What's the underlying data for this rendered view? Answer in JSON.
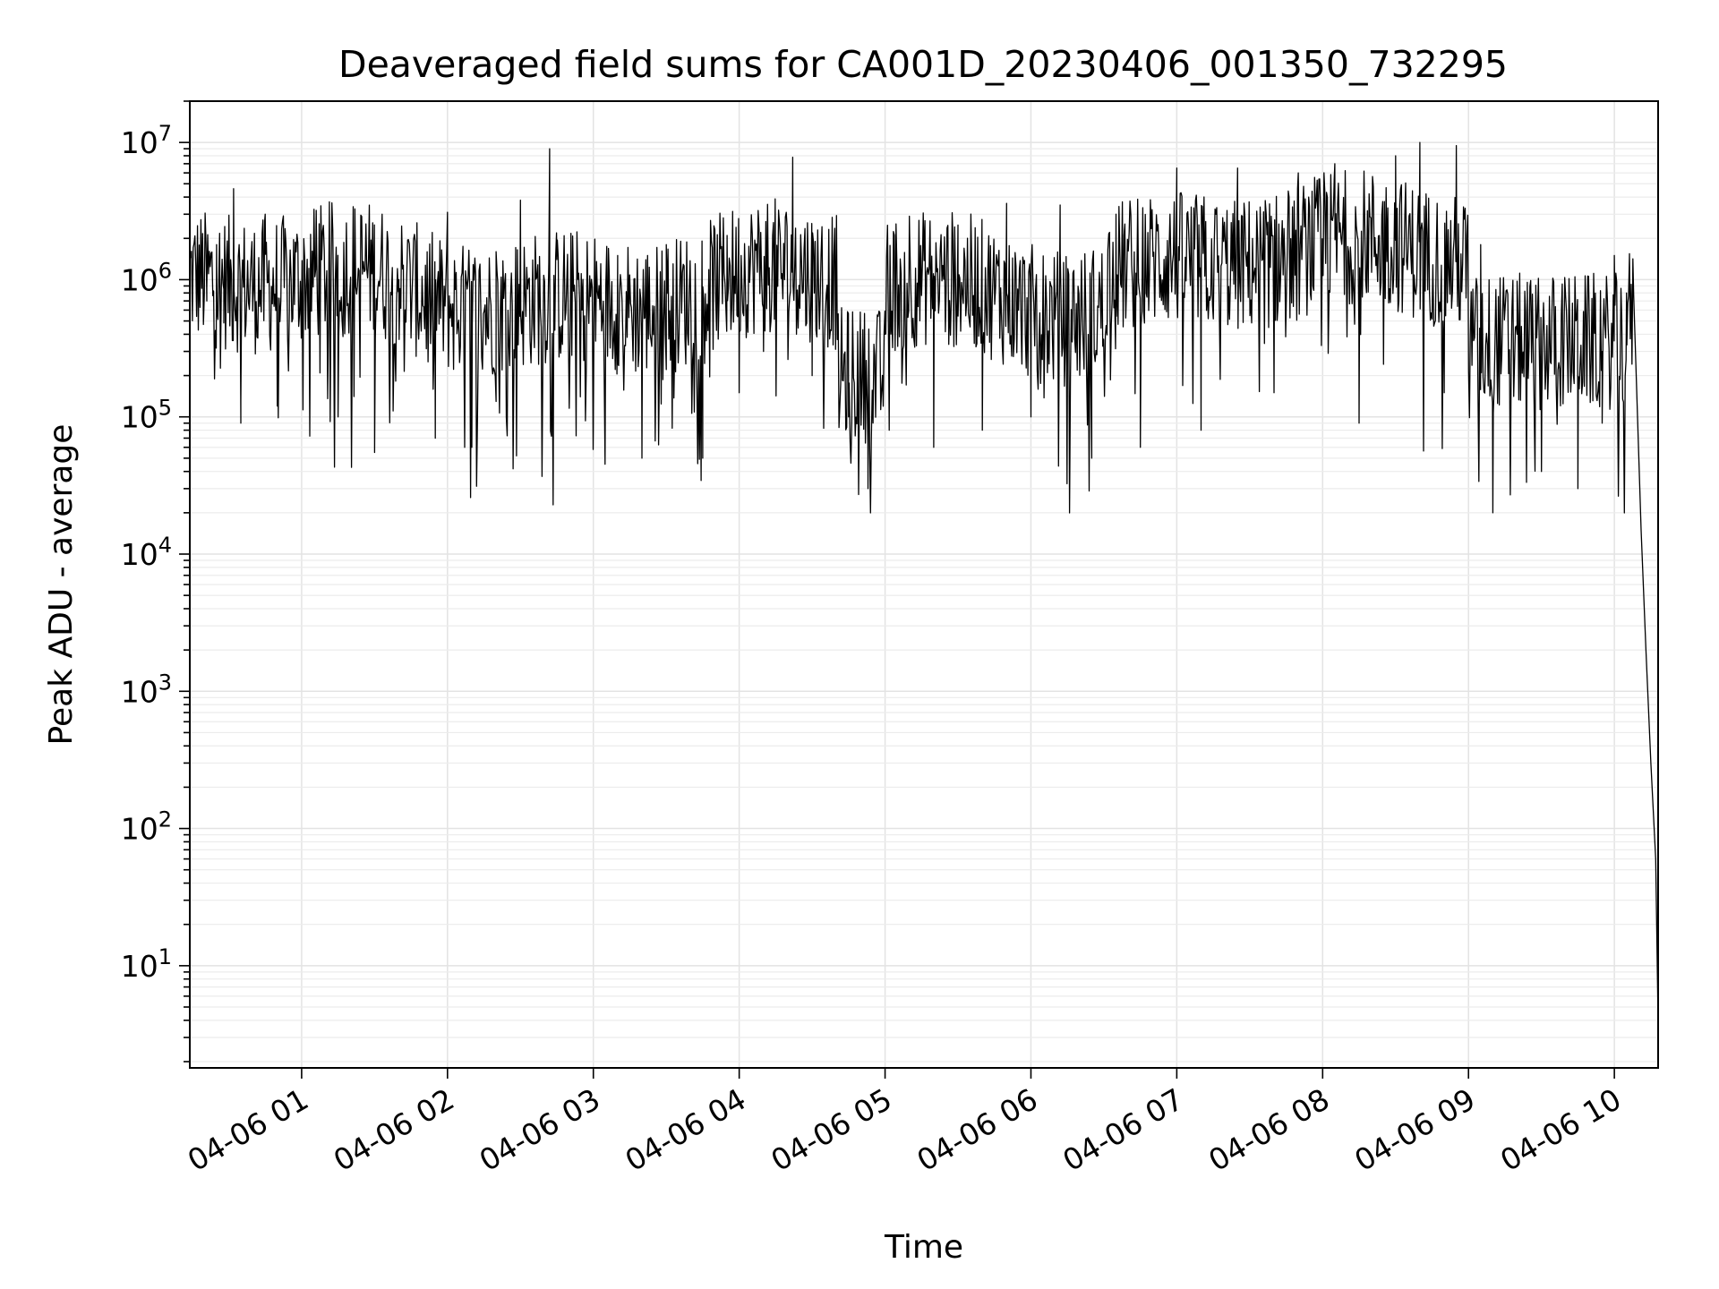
{
  "chart_data": {
    "type": "line",
    "title": "Deaveraged field sums for CA001D_20230406_001350_732295",
    "xlabel": "Time",
    "ylabel": "Peak ADU - average",
    "yscale": "log",
    "ylim": [
      1.8,
      20000000
    ],
    "xlim": [
      "04-06 00:14",
      "04-06 10:18"
    ],
    "grid": true,
    "legend": "none",
    "line_color": "#000000",
    "x_ticks": [
      {
        "label": "04-06 01",
        "time": "04-06 01:00"
      },
      {
        "label": "04-06 02",
        "time": "04-06 02:00"
      },
      {
        "label": "04-06 03",
        "time": "04-06 03:00"
      },
      {
        "label": "04-06 04",
        "time": "04-06 04:00"
      },
      {
        "label": "04-06 05",
        "time": "04-06 05:00"
      },
      {
        "label": "04-06 06",
        "time": "04-06 06:00"
      },
      {
        "label": "04-06 07",
        "time": "04-06 07:00"
      },
      {
        "label": "04-06 08",
        "time": "04-06 08:00"
      },
      {
        "label": "04-06 09",
        "time": "04-06 09:00"
      },
      {
        "label": "04-06 10",
        "time": "04-06 10:00"
      }
    ],
    "y_ticks": [
      {
        "base": "10",
        "exp": "1",
        "value": 10
      },
      {
        "base": "10",
        "exp": "2",
        "value": 100
      },
      {
        "base": "10",
        "exp": "3",
        "value": 1000
      },
      {
        "base": "10",
        "exp": "4",
        "value": 10000
      },
      {
        "base": "10",
        "exp": "5",
        "value": 100000
      },
      {
        "base": "10",
        "exp": "6",
        "value": 1000000
      },
      {
        "base": "10",
        "exp": "7",
        "value": 10000000
      }
    ],
    "series": [
      {
        "points": [
          [
            "04-06 00:14",
            480000
          ],
          [
            "04-06 00:18",
            900000
          ],
          [
            "04-06 00:21",
            700000
          ],
          [
            "04-06 00:25",
            1800000
          ],
          [
            "04-06 00:28",
            850000
          ],
          [
            "04-06 00:32",
            4600000
          ],
          [
            "04-06 00:35",
            90000
          ],
          [
            "04-06 00:40",
            700000
          ],
          [
            "04-06 00:45",
            3000000
          ],
          [
            "04-06 00:50",
            120000
          ],
          [
            "04-06 00:55",
            900000
          ],
          [
            "04-06 01:06",
            3200000
          ],
          [
            "04-06 01:15",
            100000
          ],
          [
            "04-06 01:25",
            1100000
          ],
          [
            "04-06 01:30",
            55000
          ],
          [
            "04-06 01:40",
            1000000
          ],
          [
            "04-06 01:55",
            70000
          ],
          [
            "04-06 02:00",
            3100000
          ],
          [
            "04-06 02:10",
            60000
          ],
          [
            "04-06 02:20",
            1600000
          ],
          [
            "04-06 02:30",
            3800000
          ],
          [
            "04-06 02:40",
            800000
          ],
          [
            "04-06 02:42",
            9000000
          ],
          [
            "04-06 02:45",
            1400000
          ],
          [
            "04-06 03:00",
            80000
          ],
          [
            "04-06 03:10",
            1500000
          ],
          [
            "04-06 03:20",
            50000
          ],
          [
            "04-06 03:30",
            1800000
          ],
          [
            "04-06 03:45",
            50000
          ],
          [
            "04-06 03:55",
            2100000
          ],
          [
            "04-06 04:00",
            150000
          ],
          [
            "04-06 04:10",
            300000
          ],
          [
            "04-06 04:22",
            7800000
          ],
          [
            "04-06 04:30",
            200000
          ],
          [
            "04-06 04:45",
            100000
          ],
          [
            "04-06 04:53",
            30000
          ],
          [
            "04-06 05:00",
            400000
          ],
          [
            "04-06 05:10",
            2900000
          ],
          [
            "04-06 05:20",
            60000
          ],
          [
            "04-06 05:30",
            2500000
          ],
          [
            "04-06 05:40",
            80000
          ],
          [
            "04-06 05:50",
            3600000
          ],
          [
            "04-06 06:00",
            100000
          ],
          [
            "04-06 06:12",
            3500000
          ],
          [
            "04-06 06:25",
            50000
          ],
          [
            "04-06 06:35",
            3000000
          ],
          [
            "04-06 06:45",
            60000
          ],
          [
            "04-06 07:00",
            6500000
          ],
          [
            "04-06 07:10",
            80000
          ],
          [
            "04-06 07:25",
            6500000
          ],
          [
            "04-06 07:40",
            150000
          ],
          [
            "04-06 07:50",
            6000000
          ],
          [
            "04-06 08:05",
            7000000
          ],
          [
            "04-06 08:15",
            90000
          ],
          [
            "04-06 08:30",
            8000000
          ],
          [
            "04-06 08:40",
            10000000
          ],
          [
            "04-06 08:50",
            150000
          ],
          [
            "04-06 08:55",
            9500000
          ],
          [
            "04-06 09:05",
            1800000
          ],
          [
            "04-06 09:10",
            20000
          ],
          [
            "04-06 09:20",
            400000
          ],
          [
            "04-06 09:30",
            40000
          ],
          [
            "04-06 09:45",
            30000
          ],
          [
            "04-06 09:55",
            300000
          ],
          [
            "04-06 10:00",
            1500000
          ],
          [
            "04-06 10:05",
            800000
          ],
          [
            "04-06 10:08",
            600000
          ],
          [
            "04-06 10:11",
            15000
          ],
          [
            "04-06 10:13",
            2000
          ],
          [
            "04-06 10:15",
            300
          ],
          [
            "04-06 10:17",
            60
          ],
          [
            "04-06 10:18",
            3.8
          ]
        ]
      }
    ]
  }
}
